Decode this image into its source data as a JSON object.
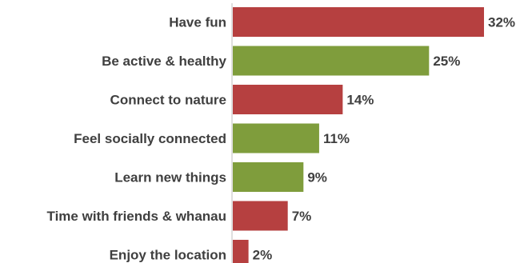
{
  "chart_data": {
    "type": "bar",
    "orientation": "horizontal",
    "categories": [
      "Have fun",
      "Be active & healthy",
      "Connect to nature",
      "Feel socially connected",
      "Learn new things",
      "Time with friends & whanau",
      "Enjoy the location"
    ],
    "values": [
      32,
      25,
      14,
      11,
      9,
      7,
      2
    ],
    "value_labels": [
      "32%",
      "25%",
      "14%",
      "11%",
      "9%",
      "7%",
      "2%"
    ],
    "bar_colors": [
      "#b64040",
      "#7f9d3c",
      "#b64040",
      "#7f9d3c",
      "#7f9d3c",
      "#b64040",
      "#b64040"
    ],
    "xlim": [
      0,
      32
    ],
    "grid": false,
    "legend": "none"
  }
}
